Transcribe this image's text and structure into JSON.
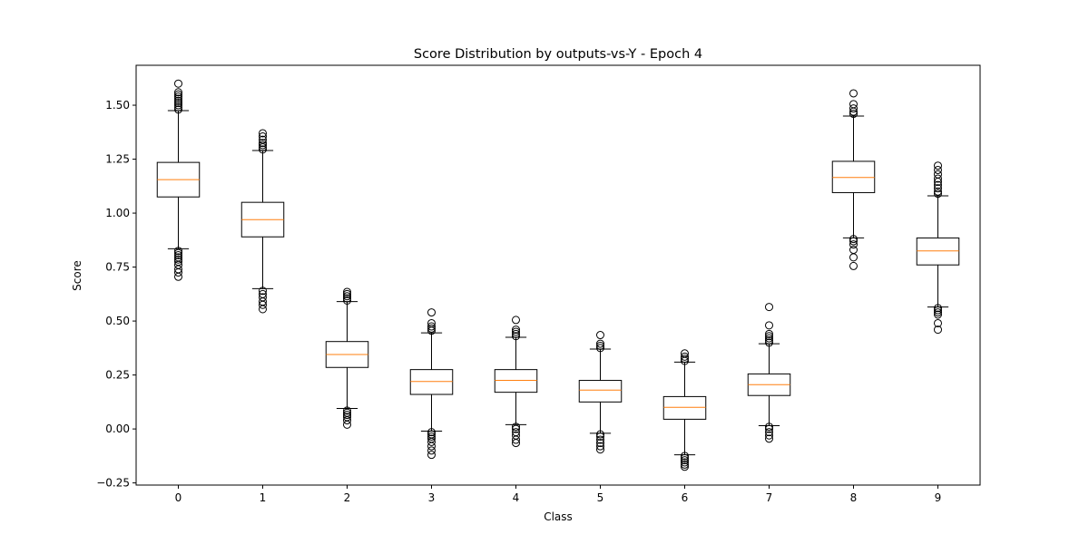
{
  "chart_data": {
    "type": "box",
    "title": "Score Distribution by outputs-vs-Y - Epoch 4",
    "xlabel": "Class",
    "ylabel": "Score",
    "categories": [
      "0",
      "1",
      "2",
      "3",
      "4",
      "5",
      "6",
      "7",
      "8",
      "9"
    ],
    "ylim": [
      -0.26,
      1.685
    ],
    "yticks": [
      -0.25,
      0.0,
      0.25,
      0.5,
      0.75,
      1.0,
      1.25,
      1.5
    ],
    "ytick_labels": [
      "−0.25",
      "0.00",
      "0.25",
      "0.50",
      "0.75",
      "1.00",
      "1.25",
      "1.50"
    ],
    "grid": false,
    "median_color": "#ff7f0e",
    "box_color": "#000000",
    "boxes": [
      {
        "category": "0",
        "q1": 1.075,
        "median": 1.155,
        "q3": 1.235,
        "whisker_low": 0.835,
        "whisker_high": 1.475,
        "outliers": [
          0.705,
          0.725,
          0.74,
          0.76,
          0.775,
          0.785,
          0.795,
          0.805,
          0.815,
          0.825,
          1.48,
          1.49,
          1.5,
          1.51,
          1.52,
          1.53,
          1.54,
          1.55,
          1.56,
          1.6
        ]
      },
      {
        "category": "1",
        "q1": 0.89,
        "median": 0.97,
        "q3": 1.05,
        "whisker_low": 0.65,
        "whisker_high": 1.29,
        "outliers": [
          0.555,
          0.575,
          0.59,
          0.61,
          0.625,
          0.64,
          1.295,
          1.305,
          1.315,
          1.325,
          1.34,
          1.355,
          1.37
        ]
      },
      {
        "category": "2",
        "q1": 0.285,
        "median": 0.345,
        "q3": 0.405,
        "whisker_low": 0.095,
        "whisker_high": 0.59,
        "outliers": [
          0.02,
          0.04,
          0.055,
          0.065,
          0.075,
          0.085,
          0.595,
          0.605,
          0.615,
          0.625,
          0.635
        ]
      },
      {
        "category": "3",
        "q1": 0.16,
        "median": 0.22,
        "q3": 0.275,
        "whisker_low": -0.01,
        "whisker_high": 0.445,
        "outliers": [
          -0.12,
          -0.1,
          -0.08,
          -0.06,
          -0.045,
          -0.035,
          -0.025,
          -0.015,
          0.455,
          0.465,
          0.475,
          0.49,
          0.54
        ]
      },
      {
        "category": "4",
        "q1": 0.17,
        "median": 0.225,
        "q3": 0.275,
        "whisker_low": 0.02,
        "whisker_high": 0.425,
        "outliers": [
          -0.065,
          -0.05,
          -0.03,
          -0.015,
          0.0,
          0.01,
          0.43,
          0.44,
          0.45,
          0.46,
          0.505
        ]
      },
      {
        "category": "5",
        "q1": 0.125,
        "median": 0.18,
        "q3": 0.225,
        "whisker_low": -0.02,
        "whisker_high": 0.37,
        "outliers": [
          -0.095,
          -0.08,
          -0.065,
          -0.05,
          -0.035,
          -0.025,
          0.375,
          0.385,
          0.395,
          0.435
        ]
      },
      {
        "category": "6",
        "q1": 0.045,
        "median": 0.1,
        "q3": 0.15,
        "whisker_low": -0.12,
        "whisker_high": 0.31,
        "outliers": [
          -0.175,
          -0.165,
          -0.155,
          -0.145,
          -0.135,
          -0.125,
          0.315,
          0.325,
          0.335,
          0.35
        ]
      },
      {
        "category": "7",
        "q1": 0.155,
        "median": 0.205,
        "q3": 0.255,
        "whisker_low": 0.015,
        "whisker_high": 0.395,
        "outliers": [
          -0.045,
          -0.03,
          -0.015,
          0.0,
          0.01,
          0.4,
          0.41,
          0.42,
          0.43,
          0.44,
          0.48,
          0.565
        ]
      },
      {
        "category": "8",
        "q1": 1.095,
        "median": 1.165,
        "q3": 1.24,
        "whisker_low": 0.885,
        "whisker_high": 1.45,
        "outliers": [
          0.755,
          0.795,
          0.83,
          0.855,
          0.87,
          0.88,
          1.46,
          1.47,
          1.485,
          1.505,
          1.555
        ]
      },
      {
        "category": "9",
        "q1": 0.76,
        "median": 0.825,
        "q3": 0.885,
        "whisker_low": 0.565,
        "whisker_high": 1.08,
        "outliers": [
          0.46,
          0.49,
          0.53,
          0.54,
          0.55,
          0.56,
          1.09,
          1.1,
          1.115,
          1.13,
          1.145,
          1.16,
          1.18,
          1.2,
          1.22
        ]
      }
    ]
  }
}
